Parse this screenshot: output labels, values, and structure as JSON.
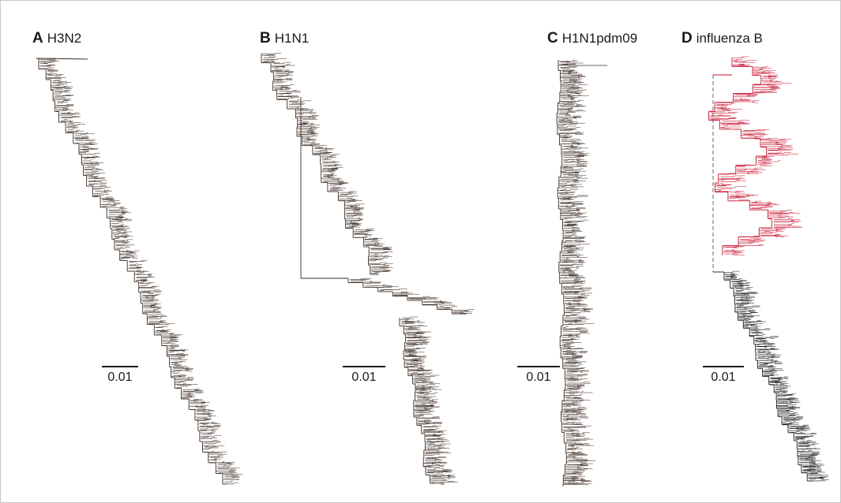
{
  "panels": [
    {
      "letter": "A",
      "name": "H3N2",
      "scale_label": "0.01"
    },
    {
      "letter": "B",
      "name": "H1N1",
      "scale_label": "0.01"
    },
    {
      "letter": "C",
      "name": "H1N1pdm09",
      "scale_label": "0.01"
    },
    {
      "letter": "D",
      "name": "influenza B",
      "scale_label": "0.01"
    }
  ],
  "colors": {
    "branch": "#3b2b22",
    "influenza_b_upper_clade": "#c8102e",
    "influenza_b_lower_clade": "#1a1a1a",
    "dashed_link": "#555555"
  }
}
